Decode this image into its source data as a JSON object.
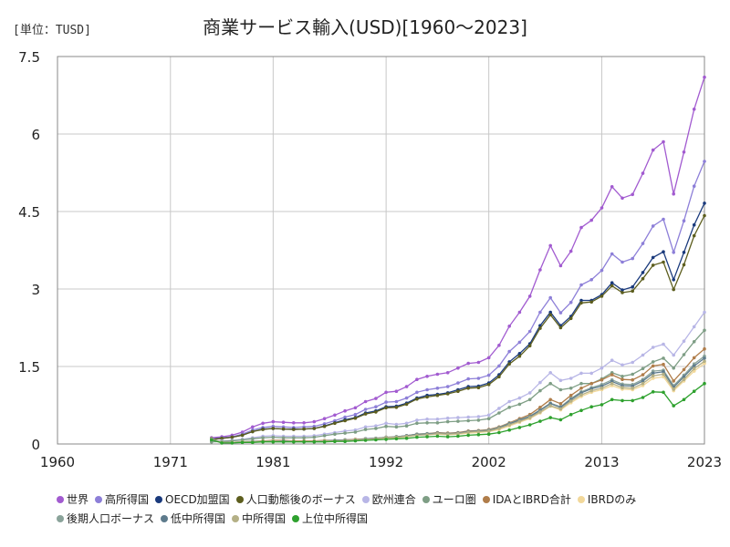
{
  "header": {
    "unit": "[単位：TUSD]"
  },
  "chart_data": {
    "type": "line",
    "title": "商業サービス輸入(USD)[1960～2023]",
    "xlabel": "",
    "ylabel": "",
    "xlim": [
      1960,
      2023
    ],
    "ylim": [
      0,
      7.5
    ],
    "x_ticks": [
      1960,
      1971,
      1981,
      1992,
      2002,
      2013,
      2023
    ],
    "y_ticks": [
      0,
      1.5,
      3,
      4.5,
      6,
      7.5
    ],
    "y_tick_labels": [
      "0",
      "1.5",
      "3",
      "4.5",
      "6",
      "7.5"
    ],
    "grid": true,
    "legend_position": "bottom",
    "x": [
      1975,
      1976,
      1977,
      1978,
      1979,
      1980,
      1981,
      1982,
      1983,
      1984,
      1985,
      1986,
      1987,
      1988,
      1989,
      1990,
      1991,
      1992,
      1993,
      1994,
      1995,
      1996,
      1997,
      1998,
      1999,
      2000,
      2001,
      2002,
      2003,
      2004,
      2005,
      2006,
      2007,
      2008,
      2009,
      2010,
      2011,
      2012,
      2013,
      2014,
      2015,
      2016,
      2017,
      2018,
      2019,
      2020,
      2021,
      2022,
      2023
    ],
    "series": [
      {
        "name": "世界",
        "color": "#a25bd0",
        "values": [
          0.12,
          0.14,
          0.17,
          0.23,
          0.33,
          0.4,
          0.43,
          0.42,
          0.41,
          0.41,
          0.43,
          0.49,
          0.56,
          0.64,
          0.7,
          0.82,
          0.88,
          1.0,
          1.02,
          1.11,
          1.25,
          1.31,
          1.35,
          1.38,
          1.47,
          1.56,
          1.58,
          1.67,
          1.91,
          2.28,
          2.55,
          2.86,
          3.37,
          3.84,
          3.45,
          3.73,
          4.19,
          4.33,
          4.57,
          4.98,
          4.76,
          4.83,
          5.24,
          5.69,
          5.85,
          4.84,
          5.65,
          6.48,
          7.1
        ]
      },
      {
        "name": "高所得国",
        "color": "#8d7fd8",
        "values": [
          0.1,
          0.12,
          0.14,
          0.19,
          0.27,
          0.32,
          0.34,
          0.33,
          0.32,
          0.33,
          0.34,
          0.39,
          0.45,
          0.52,
          0.57,
          0.67,
          0.72,
          0.81,
          0.82,
          0.89,
          1.0,
          1.05,
          1.08,
          1.11,
          1.18,
          1.26,
          1.27,
          1.33,
          1.51,
          1.79,
          1.97,
          2.18,
          2.55,
          2.83,
          2.54,
          2.74,
          3.08,
          3.18,
          3.36,
          3.68,
          3.52,
          3.59,
          3.88,
          4.22,
          4.35,
          3.71,
          4.32,
          4.99,
          5.47
        ]
      },
      {
        "name": "OECD加盟国",
        "color": "#1a3a7c",
        "values": [
          0.09,
          0.11,
          0.13,
          0.17,
          0.24,
          0.29,
          0.3,
          0.29,
          0.29,
          0.29,
          0.3,
          0.35,
          0.41,
          0.47,
          0.51,
          0.6,
          0.64,
          0.72,
          0.73,
          0.79,
          0.89,
          0.94,
          0.96,
          0.99,
          1.05,
          1.11,
          1.12,
          1.18,
          1.34,
          1.59,
          1.75,
          1.94,
          2.29,
          2.55,
          2.29,
          2.47,
          2.78,
          2.78,
          2.89,
          3.12,
          2.98,
          3.04,
          3.32,
          3.61,
          3.72,
          3.18,
          3.71,
          4.24,
          4.66
        ]
      },
      {
        "name": "人口動態後のボーナス",
        "color": "#5d5e1e",
        "values": [
          0.09,
          0.11,
          0.13,
          0.17,
          0.24,
          0.28,
          0.3,
          0.29,
          0.28,
          0.29,
          0.3,
          0.34,
          0.4,
          0.45,
          0.5,
          0.58,
          0.62,
          0.7,
          0.71,
          0.77,
          0.87,
          0.91,
          0.94,
          0.97,
          1.02,
          1.08,
          1.09,
          1.15,
          1.3,
          1.55,
          1.7,
          1.9,
          2.24,
          2.5,
          2.25,
          2.43,
          2.73,
          2.75,
          2.86,
          3.06,
          2.93,
          2.96,
          3.2,
          3.46,
          3.52,
          2.99,
          3.47,
          4.03,
          4.42
        ]
      },
      {
        "name": "欧州連合",
        "color": "#b8b6e6",
        "values": [
          0.05,
          0.06,
          0.07,
          0.09,
          0.12,
          0.15,
          0.16,
          0.15,
          0.15,
          0.15,
          0.16,
          0.19,
          0.22,
          0.25,
          0.27,
          0.33,
          0.35,
          0.4,
          0.38,
          0.4,
          0.46,
          0.48,
          0.48,
          0.5,
          0.51,
          0.52,
          0.53,
          0.56,
          0.69,
          0.82,
          0.89,
          0.99,
          1.19,
          1.38,
          1.23,
          1.27,
          1.37,
          1.37,
          1.47,
          1.62,
          1.53,
          1.58,
          1.72,
          1.87,
          1.93,
          1.72,
          1.99,
          2.27,
          2.55
        ]
      },
      {
        "name": "ユーロ圏",
        "color": "#7e9e85",
        "values": [
          0.04,
          0.05,
          0.06,
          0.08,
          0.1,
          0.12,
          0.13,
          0.12,
          0.12,
          0.12,
          0.13,
          0.16,
          0.19,
          0.21,
          0.23,
          0.28,
          0.3,
          0.34,
          0.33,
          0.35,
          0.4,
          0.41,
          0.41,
          0.43,
          0.44,
          0.45,
          0.46,
          0.49,
          0.6,
          0.71,
          0.77,
          0.86,
          1.03,
          1.17,
          1.05,
          1.08,
          1.17,
          1.17,
          1.26,
          1.38,
          1.31,
          1.35,
          1.46,
          1.59,
          1.66,
          1.47,
          1.73,
          1.98,
          2.2
        ]
      },
      {
        "name": "IDAとIBRD合計",
        "color": "#b07d4a",
        "values": [
          0.11,
          0.03,
          0.03,
          0.04,
          0.05,
          0.06,
          0.07,
          0.07,
          0.06,
          0.06,
          0.06,
          0.07,
          0.07,
          0.08,
          0.09,
          0.1,
          0.11,
          0.13,
          0.14,
          0.16,
          0.19,
          0.2,
          0.22,
          0.21,
          0.22,
          0.25,
          0.26,
          0.28,
          0.33,
          0.41,
          0.49,
          0.57,
          0.71,
          0.86,
          0.78,
          0.94,
          1.08,
          1.17,
          1.24,
          1.34,
          1.25,
          1.24,
          1.34,
          1.51,
          1.54,
          1.22,
          1.44,
          1.67,
          1.84
        ]
      },
      {
        "name": "IBRDのみ",
        "color": "#f2d89a",
        "values": [
          0.1,
          0.03,
          0.03,
          0.04,
          0.05,
          0.05,
          0.06,
          0.06,
          0.05,
          0.05,
          0.05,
          0.06,
          0.06,
          0.07,
          0.08,
          0.09,
          0.1,
          0.11,
          0.12,
          0.14,
          0.17,
          0.18,
          0.19,
          0.18,
          0.19,
          0.21,
          0.22,
          0.24,
          0.28,
          0.35,
          0.42,
          0.49,
          0.6,
          0.73,
          0.66,
          0.8,
          0.92,
          1.0,
          1.05,
          1.13,
          1.06,
          1.05,
          1.13,
          1.27,
          1.3,
          1.03,
          1.22,
          1.41,
          1.56
        ]
      },
      {
        "name": "後期人口ボーナス",
        "color": "#8aa39a",
        "values": [
          0.1,
          0.03,
          0.03,
          0.03,
          0.04,
          0.05,
          0.06,
          0.06,
          0.05,
          0.05,
          0.05,
          0.06,
          0.07,
          0.08,
          0.08,
          0.1,
          0.11,
          0.13,
          0.14,
          0.16,
          0.19,
          0.2,
          0.21,
          0.2,
          0.21,
          0.24,
          0.25,
          0.27,
          0.32,
          0.4,
          0.47,
          0.54,
          0.66,
          0.79,
          0.72,
          0.88,
          1.01,
          1.09,
          1.15,
          1.24,
          1.16,
          1.15,
          1.25,
          1.41,
          1.43,
          1.13,
          1.33,
          1.55,
          1.7
        ]
      },
      {
        "name": "低中所得国",
        "color": "#5e7b8c",
        "values": [
          0.1,
          0.03,
          0.03,
          0.04,
          0.05,
          0.05,
          0.06,
          0.06,
          0.05,
          0.05,
          0.05,
          0.06,
          0.07,
          0.08,
          0.08,
          0.1,
          0.11,
          0.12,
          0.14,
          0.16,
          0.18,
          0.19,
          0.21,
          0.2,
          0.21,
          0.24,
          0.25,
          0.26,
          0.31,
          0.39,
          0.46,
          0.53,
          0.65,
          0.78,
          0.71,
          0.86,
          0.99,
          1.07,
          1.12,
          1.21,
          1.13,
          1.12,
          1.22,
          1.37,
          1.4,
          1.1,
          1.3,
          1.51,
          1.66
        ]
      },
      {
        "name": "中所得国",
        "color": "#b4b086",
        "values": [
          0.09,
          0.03,
          0.03,
          0.04,
          0.04,
          0.05,
          0.06,
          0.05,
          0.05,
          0.05,
          0.05,
          0.06,
          0.06,
          0.07,
          0.08,
          0.09,
          0.1,
          0.12,
          0.13,
          0.15,
          0.17,
          0.18,
          0.2,
          0.19,
          0.2,
          0.23,
          0.24,
          0.25,
          0.3,
          0.37,
          0.44,
          0.51,
          0.62,
          0.74,
          0.68,
          0.83,
          0.95,
          1.03,
          1.08,
          1.17,
          1.09,
          1.08,
          1.17,
          1.32,
          1.35,
          1.06,
          1.25,
          1.46,
          1.6
        ]
      },
      {
        "name": "上位中所得国",
        "color": "#2ea12e",
        "values": [
          0.08,
          0.02,
          0.02,
          0.03,
          0.03,
          0.04,
          0.04,
          0.04,
          0.04,
          0.04,
          0.04,
          0.04,
          0.05,
          0.05,
          0.06,
          0.07,
          0.08,
          0.09,
          0.1,
          0.11,
          0.13,
          0.14,
          0.15,
          0.14,
          0.15,
          0.17,
          0.18,
          0.19,
          0.22,
          0.27,
          0.32,
          0.37,
          0.44,
          0.51,
          0.47,
          0.57,
          0.65,
          0.72,
          0.76,
          0.86,
          0.84,
          0.84,
          0.9,
          1.01,
          1.0,
          0.74,
          0.86,
          1.02,
          1.17
        ]
      }
    ]
  }
}
